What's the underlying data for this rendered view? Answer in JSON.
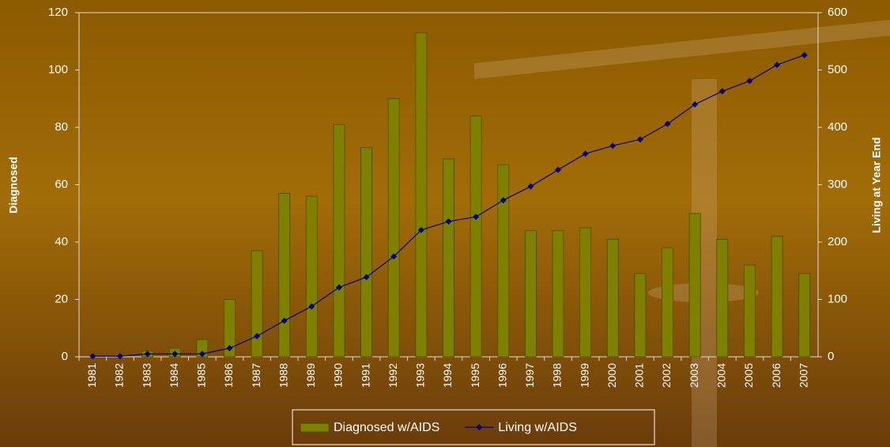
{
  "chart_data": {
    "type": "bar_line",
    "categories": [
      "1981",
      "1982",
      "1983",
      "1984",
      "1985",
      "1986",
      "1987",
      "1988",
      "1989",
      "1990",
      "1991",
      "1992",
      "1993",
      "1994",
      "1995",
      "1996",
      "1997",
      "1998",
      "1999",
      "2000",
      "2001",
      "2002",
      "2003",
      "2004",
      "2005",
      "2006",
      "2007"
    ],
    "series": [
      {
        "name": "Diagnosed w/AIDS",
        "color": "#808000",
        "type": "bar",
        "values": [
          0,
          0,
          2,
          3,
          6,
          20,
          37,
          57,
          56,
          81,
          73,
          90,
          113,
          69,
          84,
          67,
          44,
          44,
          45,
          41,
          29,
          38,
          50,
          41,
          32,
          42,
          29
        ]
      },
      {
        "name": "Living w/AIDS",
        "color": "#000080",
        "type": "line",
        "axis": "y2",
        "values": [
          1,
          1,
          5,
          5,
          5,
          15,
          36,
          63,
          88,
          121,
          139,
          175,
          221,
          236,
          244,
          273,
          297,
          326,
          354,
          368,
          379,
          406,
          440,
          463,
          481,
          509,
          526
        ]
      }
    ],
    "y_label": "Diagnosed",
    "y2_label": "Living at Year End",
    "ylim": [
      0,
      120
    ],
    "yticks": [
      0,
      20,
      40,
      60,
      80,
      100,
      120
    ],
    "y2lim": [
      0,
      600
    ],
    "y2ticks": [
      0,
      100,
      200,
      300,
      400,
      500,
      600
    ],
    "legend": "bottom"
  }
}
